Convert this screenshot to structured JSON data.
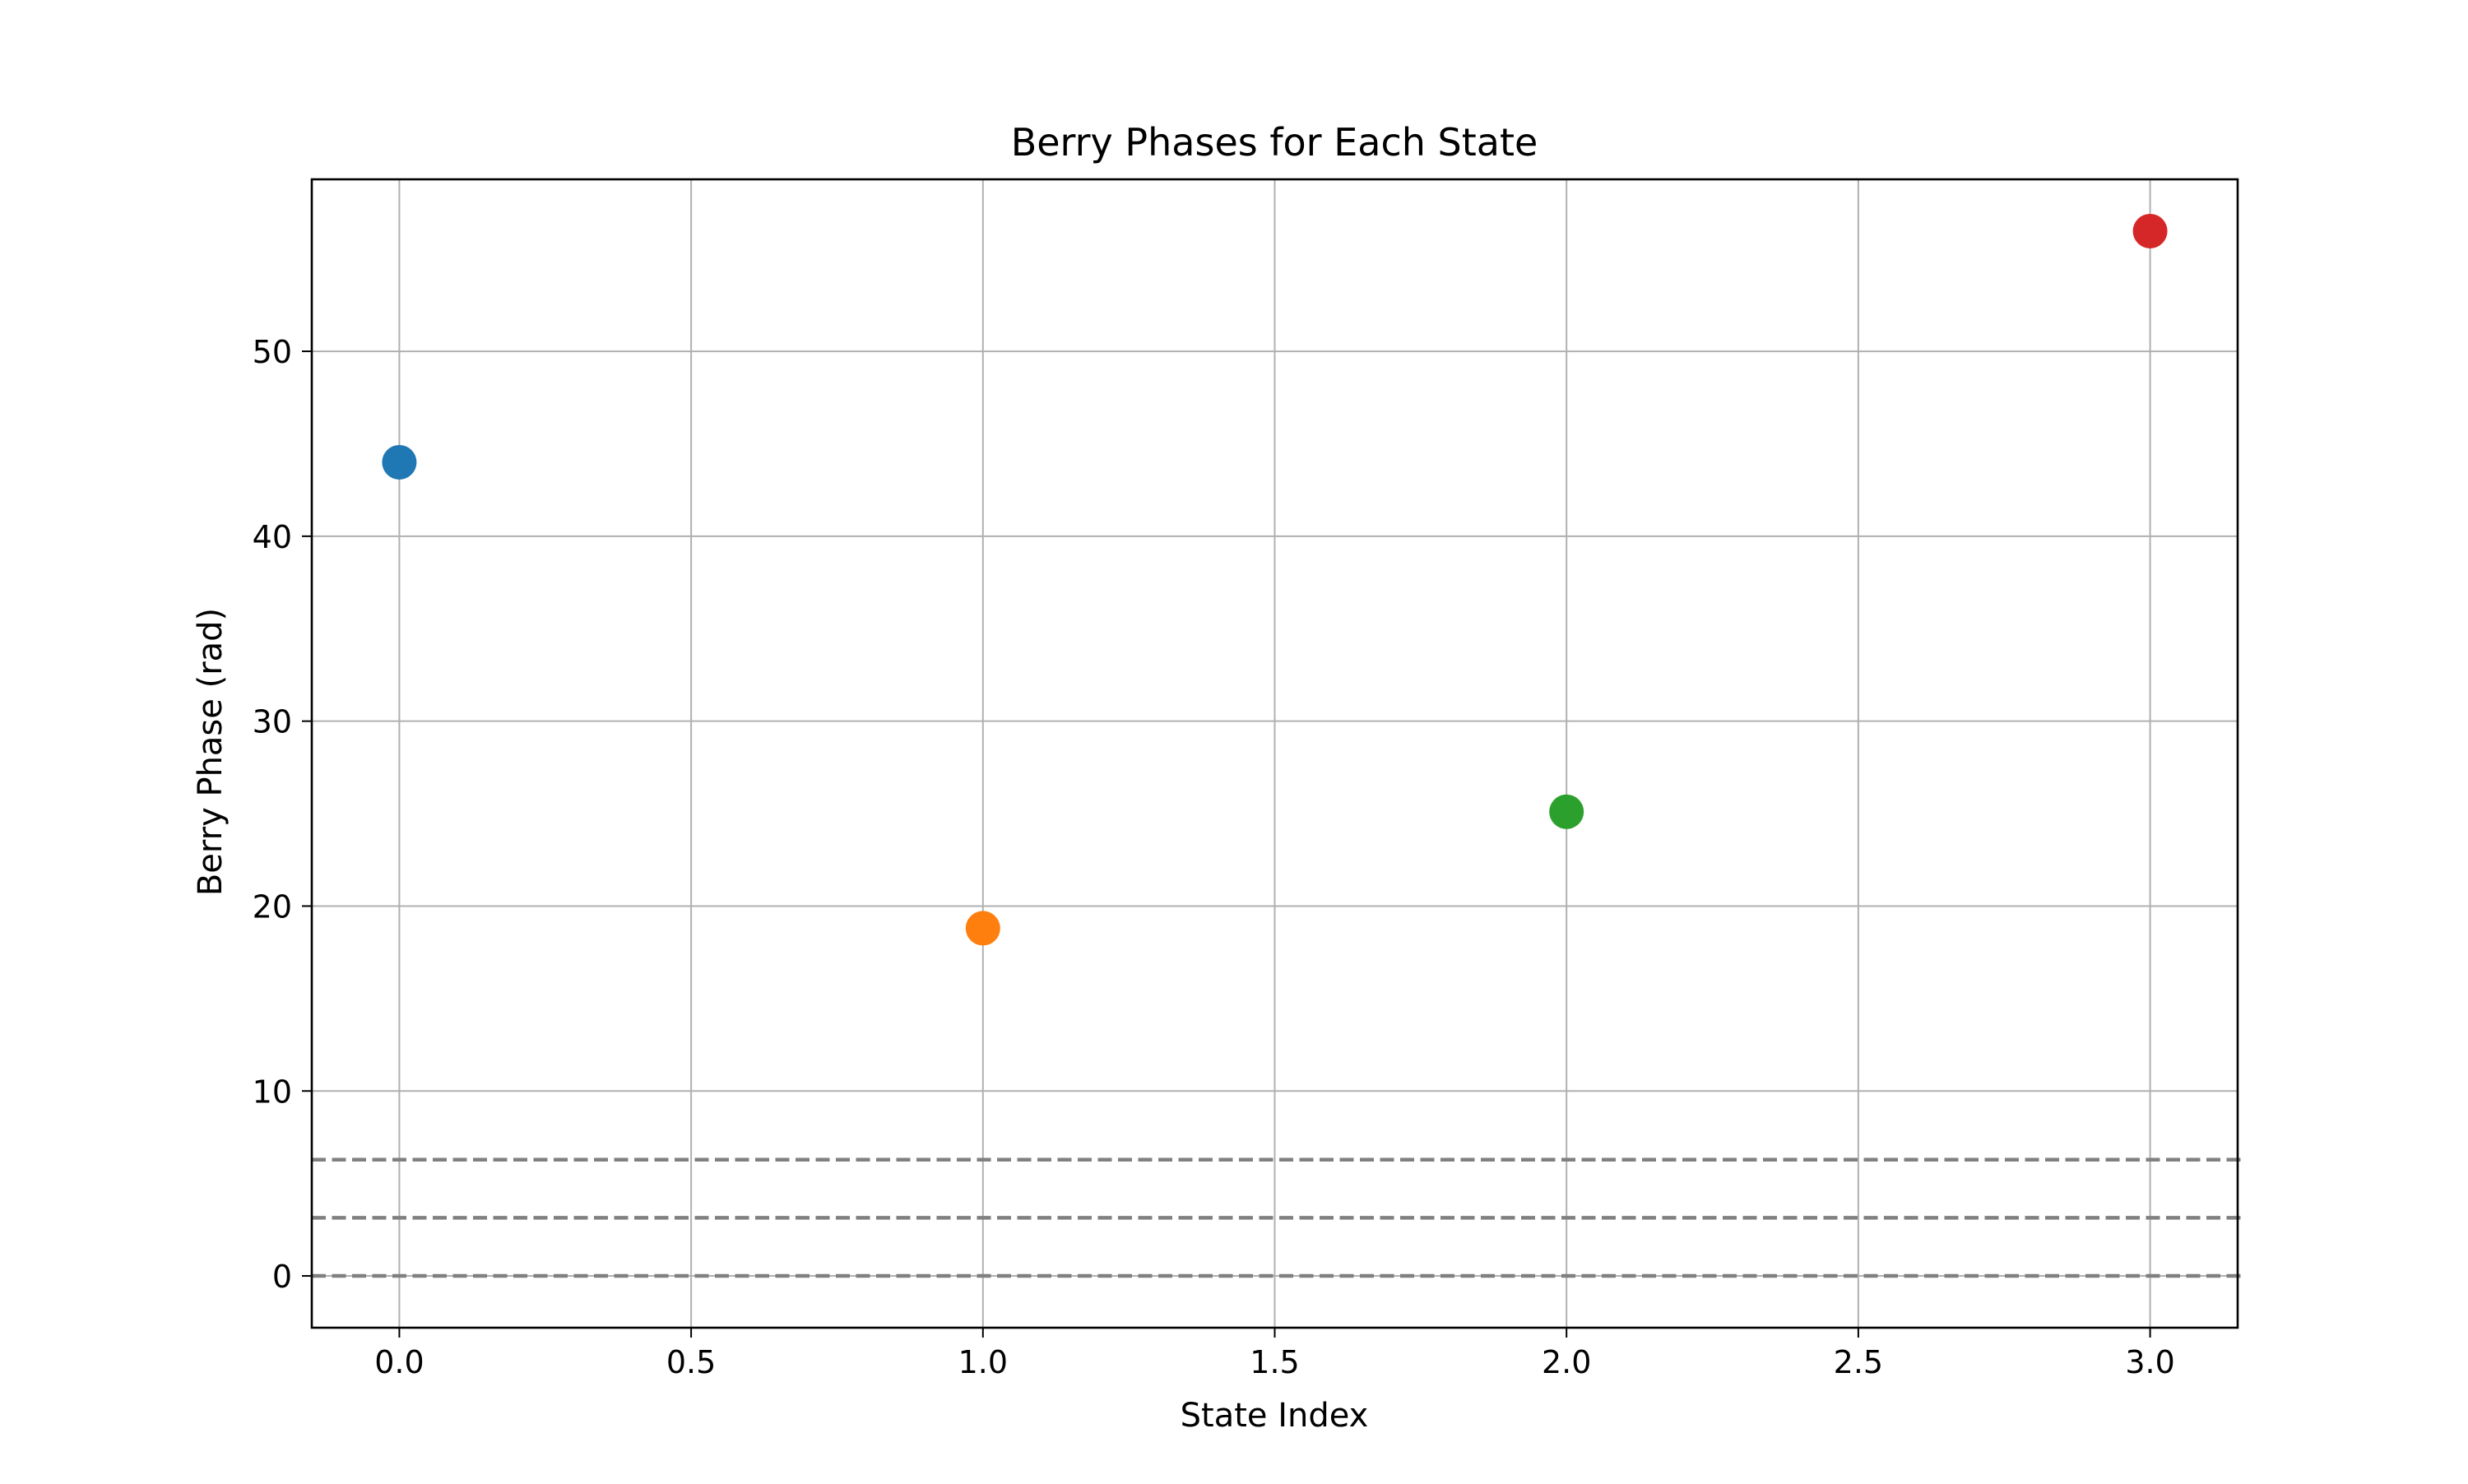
{
  "chart_data": {
    "type": "scatter",
    "title": "Berry Phases for Each State",
    "xlabel": "State Index",
    "ylabel": "Berry Phase (rad)",
    "xlim": [
      -0.15,
      3.15
    ],
    "ylim": [
      -2.8,
      59.3
    ],
    "xticks": [
      0.0,
      0.5,
      1.0,
      1.5,
      2.0,
      2.5,
      3.0
    ],
    "xtick_labels": [
      "0.0",
      "0.5",
      "1.0",
      "1.5",
      "2.0",
      "2.5",
      "3.0"
    ],
    "yticks": [
      0,
      10,
      20,
      30,
      40,
      50
    ],
    "ytick_labels": [
      "0",
      "10",
      "20",
      "30",
      "40",
      "50"
    ],
    "grid": true,
    "legend": "none",
    "points": [
      {
        "x": 0,
        "y": 44.0,
        "color": "#1f77b4"
      },
      {
        "x": 1,
        "y": 18.8,
        "color": "#ff7f0e"
      },
      {
        "x": 2,
        "y": 25.1,
        "color": "#2ca02c"
      },
      {
        "x": 3,
        "y": 56.5,
        "color": "#d62728"
      }
    ],
    "reference_lines": [
      {
        "y": 0,
        "style": "dashed",
        "color": "#808080"
      },
      {
        "y": 3.1416,
        "style": "dashed",
        "color": "#808080"
      },
      {
        "y": 6.2832,
        "style": "dashed",
        "color": "#808080"
      }
    ]
  }
}
